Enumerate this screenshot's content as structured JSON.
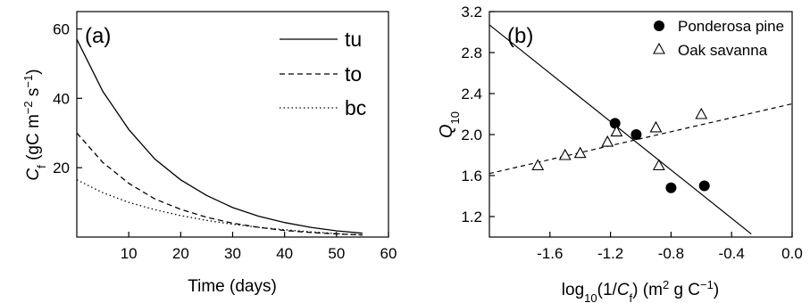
{
  "chart_data": [
    {
      "type": "line",
      "panel_label": "(a)",
      "xlabel": "Time (days)",
      "ylabel_main": "C",
      "ylabel_sub": "f",
      "ylabel_unit": " (gC m",
      "ylabel_exp1": "−2",
      "ylabel_mid": " s",
      "ylabel_exp2": "−1",
      "ylabel_close": ")",
      "xlim": [
        0,
        60
      ],
      "ylim": [
        0,
        65
      ],
      "xticks": [
        "10",
        "20",
        "30",
        "40",
        "50",
        "60"
      ],
      "yticks": [
        "20",
        "40",
        "60"
      ],
      "legend_position": "top-right",
      "series": [
        {
          "name": "tu",
          "style": "solid",
          "x": [
            0,
            5,
            10,
            15,
            20,
            25,
            30,
            35,
            40,
            45,
            50,
            55
          ],
          "y": [
            57,
            42,
            31,
            22.5,
            16.5,
            12,
            8.5,
            6,
            4.2,
            2.8,
            1.8,
            1.1
          ]
        },
        {
          "name": "to",
          "style": "dashed",
          "x": [
            0,
            5,
            10,
            15,
            20,
            25,
            30,
            35,
            40,
            45,
            50,
            55
          ],
          "y": [
            30,
            21.5,
            15.5,
            11,
            8,
            5.7,
            4,
            2.8,
            1.9,
            1.3,
            0.9,
            0.6
          ]
        },
        {
          "name": "bc",
          "style": "dotted",
          "x": [
            0,
            5,
            10,
            15,
            20,
            25,
            30,
            35,
            40,
            45,
            50,
            55
          ],
          "y": [
            16.5,
            12.8,
            10,
            7.9,
            6.2,
            4.8,
            3.7,
            2.8,
            2.1,
            1.5,
            1,
            0.6
          ]
        }
      ]
    },
    {
      "type": "scatter",
      "panel_label": "(b)",
      "xlabel_pre": "log",
      "xlabel_sub1": "10",
      "xlabel_mid": "(1/",
      "xlabel_var": "C",
      "xlabel_sub2": "f",
      "xlabel_unit": ") (m",
      "xlabel_exp1": "2",
      "xlabel_unit2": " g C",
      "xlabel_exp2": "−1",
      "xlabel_close": ")",
      "ylabel_main": "Q",
      "ylabel_sub": "10",
      "xlim": [
        -2.0,
        0.0
      ],
      "ylim": [
        1.0,
        3.2
      ],
      "xticks": [
        "-1.6",
        "-1.2",
        "-0.8",
        "-0.4",
        "0.0"
      ],
      "yticks": [
        "1.2",
        "1.6",
        "2.0",
        "2.4",
        "2.8",
        "3.2"
      ],
      "legend_position": "top-right",
      "series": [
        {
          "name": "Ponderosa pine",
          "marker": "filled-circle",
          "x": [
            -1.17,
            -1.03,
            -0.8,
            -0.58
          ],
          "y": [
            2.11,
            2.0,
            1.48,
            1.5
          ],
          "fit": {
            "x": [
              -2.0,
              -0.27
            ],
            "y": [
              3.07,
              1.03
            ]
          }
        },
        {
          "name": "Oak savanna",
          "marker": "open-triangle",
          "x": [
            -1.68,
            -1.5,
            -1.4,
            -1.22,
            -1.16,
            -0.9,
            -0.88,
            -0.6
          ],
          "y": [
            1.7,
            1.8,
            1.82,
            1.93,
            2.03,
            2.07,
            1.7,
            2.2
          ],
          "fit": {
            "x": [
              -2.0,
              0.0
            ],
            "y": [
              1.62,
              2.3
            ]
          }
        }
      ]
    }
  ]
}
